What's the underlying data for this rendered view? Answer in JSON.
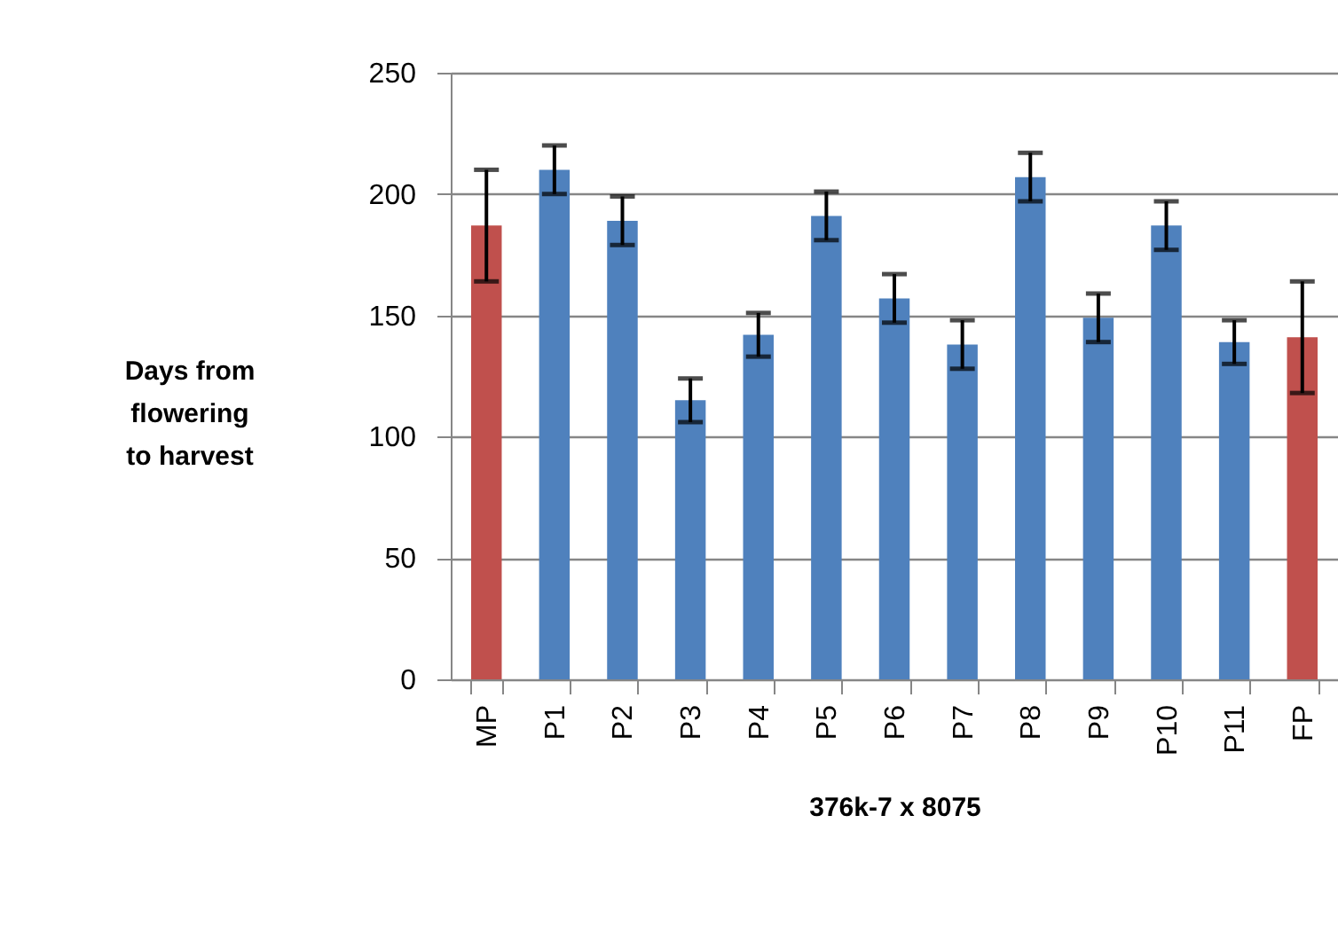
{
  "chart_data": {
    "type": "bar",
    "xlabel": "376k-7 x 8075",
    "ylabel": "Days from flowering to harvest",
    "categories": [
      "MP",
      "P1",
      "P2",
      "P3",
      "P4",
      "P5",
      "P6",
      "P7",
      "P8",
      "P9",
      "P10",
      "P11",
      "FP"
    ],
    "values": [
      187,
      210,
      189,
      115,
      142,
      191,
      157,
      138,
      207,
      149,
      187,
      139,
      141
    ],
    "errors": [
      23,
      10,
      10,
      9,
      9,
      10,
      10,
      10,
      10,
      10,
      10,
      9,
      23
    ],
    "colors": [
      "#c0504d",
      "#4f81bd",
      "#4f81bd",
      "#4f81bd",
      "#4f81bd",
      "#4f81bd",
      "#4f81bd",
      "#4f81bd",
      "#4f81bd",
      "#4f81bd",
      "#4f81bd",
      "#4f81bd",
      "#c0504d"
    ],
    "ylim": [
      0,
      250
    ],
    "yticks": [
      0,
      50,
      100,
      150,
      200,
      250
    ],
    "grid": "y"
  }
}
